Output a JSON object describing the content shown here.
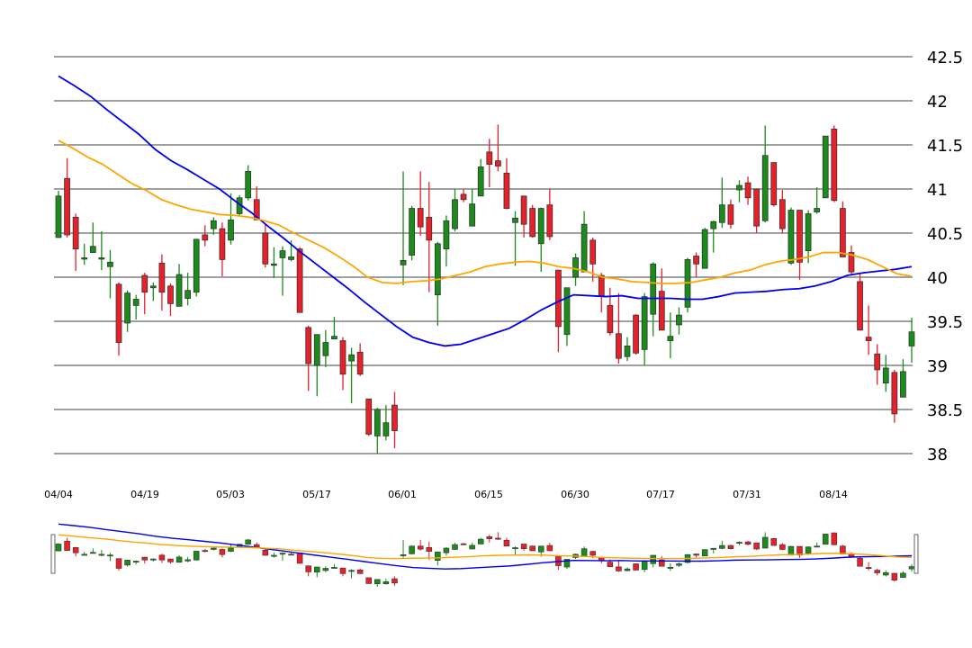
{
  "chart_data": {
    "type": "candlestick",
    "title": "",
    "xlabel": "",
    "ylabel": "",
    "ylim": [
      38,
      42.5
    ],
    "y_ticks": [
      "38",
      "38.5",
      "39",
      "39.5",
      "40",
      "40.5",
      "41",
      "41.5",
      "42",
      "42.5"
    ],
    "x_tick_labels": [
      "04/04",
      "04/19",
      "05/03",
      "05/17",
      "06/01",
      "06/15",
      "06/30",
      "07/17",
      "07/31",
      "08/14"
    ],
    "grid": "horizontal",
    "colors": {
      "up": "#1a8c1a",
      "down": "#e8202a",
      "ma_short": "#0000ee",
      "ma_long": "#ffa500",
      "grid": "#808080"
    },
    "candles": [
      [
        40.45,
        40.92,
        40.98,
        40.45
      ],
      [
        41.12,
        40.48,
        41.35,
        40.45
      ],
      [
        40.68,
        40.32,
        40.72,
        40.07
      ],
      [
        40.22,
        40.22,
        40.38,
        40.14
      ],
      [
        40.28,
        40.35,
        40.62,
        40.28
      ],
      [
        40.22,
        40.22,
        40.52,
        40.08
      ],
      [
        40.12,
        40.17,
        40.31,
        39.76
      ],
      [
        39.92,
        39.26,
        39.94,
        39.11
      ],
      [
        39.48,
        39.82,
        39.85,
        39.38
      ],
      [
        39.68,
        39.75,
        39.8,
        39.52
      ],
      [
        40.02,
        39.83,
        40.05,
        39.58
      ],
      [
        39.88,
        39.9,
        39.94,
        39.73
      ],
      [
        40.16,
        39.83,
        40.26,
        39.62
      ],
      [
        39.9,
        39.7,
        39.93,
        39.56
      ],
      [
        39.67,
        40.03,
        40.15,
        39.67
      ],
      [
        39.76,
        39.85,
        40.05,
        39.68
      ],
      [
        39.83,
        40.43,
        40.43,
        39.78
      ],
      [
        40.48,
        40.42,
        40.59,
        40.35
      ],
      [
        40.55,
        40.64,
        40.68,
        40.48
      ],
      [
        40.55,
        40.2,
        40.62,
        40.01
      ],
      [
        40.42,
        40.65,
        40.95,
        40.37
      ],
      [
        40.72,
        40.9,
        40.93,
        40.7
      ],
      [
        40.9,
        41.2,
        41.27,
        40.87
      ],
      [
        40.88,
        40.65,
        41.03,
        40.65
      ],
      [
        40.5,
        40.15,
        40.6,
        40.11
      ],
      [
        40.15,
        40.15,
        40.34,
        39.99
      ],
      [
        40.22,
        40.3,
        40.35,
        39.79
      ],
      [
        40.2,
        40.23,
        40.42,
        40.18
      ],
      [
        40.32,
        39.6,
        40.34,
        39.6
      ],
      [
        39.43,
        39.02,
        39.45,
        38.71
      ],
      [
        39.0,
        39.35,
        39.35,
        38.65
      ],
      [
        39.11,
        39.26,
        39.4,
        38.98
      ],
      [
        39.3,
        39.33,
        39.55,
        39.3
      ],
      [
        39.28,
        38.9,
        39.32,
        38.72
      ],
      [
        39.05,
        39.12,
        39.2,
        38.57
      ],
      [
        39.15,
        38.9,
        39.25,
        38.88
      ],
      [
        38.62,
        38.22,
        38.62,
        38.2
      ],
      [
        38.2,
        38.5,
        38.52,
        38.0
      ],
      [
        38.2,
        38.35,
        38.55,
        38.15
      ],
      [
        38.55,
        38.26,
        38.7,
        38.06
      ],
      [
        40.14,
        40.19,
        41.2,
        39.91
      ],
      [
        40.25,
        40.78,
        40.81,
        40.19
      ],
      [
        40.78,
        40.57,
        41.2,
        40.47
      ],
      [
        40.68,
        40.42,
        41.08,
        39.83
      ],
      [
        39.8,
        40.38,
        40.4,
        39.45
      ],
      [
        40.32,
        40.64,
        40.7,
        40.12
      ],
      [
        40.55,
        40.88,
        41.0,
        40.52
      ],
      [
        40.94,
        40.88,
        41.0,
        40.85
      ],
      [
        40.58,
        40.83,
        41.0,
        40.58
      ],
      [
        40.92,
        41.25,
        41.34,
        41.0
      ],
      [
        41.42,
        41.28,
        41.57,
        41.02
      ],
      [
        41.32,
        41.26,
        41.73,
        41.2
      ],
      [
        41.18,
        40.78,
        41.35,
        40.77
      ],
      [
        40.62,
        40.67,
        40.75,
        40.13
      ],
      [
        40.92,
        40.6,
        40.92,
        40.45
      ],
      [
        40.78,
        40.46,
        40.82,
        40.45
      ],
      [
        40.38,
        40.78,
        40.79,
        40.06
      ],
      [
        40.82,
        40.46,
        41.0,
        40.42
      ],
      [
        40.08,
        39.44,
        40.08,
        39.15
      ],
      [
        39.35,
        39.88,
        39.88,
        39.22
      ],
      [
        40.0,
        40.22,
        40.27,
        39.9
      ],
      [
        40.06,
        40.6,
        40.75,
        40.06
      ],
      [
        40.42,
        40.15,
        40.45,
        39.95
      ],
      [
        40.02,
        39.79,
        40.05,
        39.6
      ],
      [
        39.68,
        39.37,
        39.88,
        39.34
      ],
      [
        39.36,
        39.08,
        39.82,
        39.02
      ],
      [
        39.1,
        39.22,
        39.32,
        39.05
      ],
      [
        39.57,
        39.14,
        39.58,
        39.12
      ],
      [
        39.18,
        39.78,
        39.82,
        39.0
      ],
      [
        39.58,
        40.15,
        40.17,
        39.33
      ],
      [
        39.84,
        39.4,
        40.1,
        39.4
      ],
      [
        39.28,
        39.33,
        39.6,
        39.08
      ],
      [
        39.46,
        39.57,
        39.66,
        39.35
      ],
      [
        39.66,
        40.2,
        40.22,
        39.6
      ],
      [
        40.24,
        40.15,
        40.28,
        40.0
      ],
      [
        40.1,
        40.54,
        40.56,
        40.1
      ],
      [
        40.55,
        40.63,
        40.64,
        40.28
      ],
      [
        40.62,
        40.82,
        41.13,
        40.56
      ],
      [
        40.82,
        40.6,
        40.88,
        40.55
      ],
      [
        40.99,
        41.04,
        41.1,
        40.85
      ],
      [
        41.07,
        40.9,
        41.14,
        40.82
      ],
      [
        41.0,
        40.58,
        41.0,
        40.5
      ],
      [
        40.64,
        41.38,
        41.72,
        40.62
      ],
      [
        41.3,
        40.82,
        41.3,
        40.8
      ],
      [
        40.88,
        40.55,
        40.99,
        40.5
      ],
      [
        40.16,
        40.76,
        40.79,
        40.14
      ],
      [
        40.76,
        40.17,
        40.76,
        39.97
      ],
      [
        40.3,
        40.72,
        40.76,
        40.16
      ],
      [
        40.74,
        40.78,
        41.02,
        40.72
      ],
      [
        40.9,
        41.6,
        41.6,
        40.9
      ],
      [
        41.68,
        40.87,
        41.72,
        40.85
      ],
      [
        40.78,
        40.23,
        40.86,
        40.23
      ],
      [
        40.28,
        40.06,
        40.36,
        40.03
      ],
      [
        39.95,
        39.4,
        40.05,
        39.4
      ],
      [
        39.32,
        39.28,
        39.68,
        39.12
      ],
      [
        39.13,
        38.95,
        39.24,
        38.78
      ],
      [
        38.8,
        38.97,
        39.12,
        38.7
      ],
      [
        38.92,
        38.45,
        38.95,
        38.35
      ],
      [
        38.64,
        38.93,
        39.07,
        38.64
      ],
      [
        39.22,
        39.38,
        39.54,
        39.03
      ]
    ],
    "series": [
      {
        "values": [
          42.28,
          42.17,
          42.05,
          41.9,
          41.76,
          41.62,
          41.45,
          41.32,
          41.22,
          41.11,
          41.0,
          40.86,
          40.73,
          40.58,
          40.44,
          40.29,
          40.15,
          40.01,
          39.87,
          39.72,
          39.58,
          39.44,
          39.32,
          39.26,
          39.22,
          39.24,
          39.3,
          39.36,
          39.42,
          39.52,
          39.63,
          39.72,
          39.8,
          39.79,
          39.78,
          39.79,
          39.76,
          39.76,
          39.76,
          39.75,
          39.75,
          39.78,
          39.82,
          39.83,
          39.84,
          39.86,
          39.87,
          39.9,
          39.95,
          40.02,
          40.05,
          40.07,
          40.09,
          40.12
        ]
      },
      {
        "values": [
          41.55,
          41.46,
          41.36,
          41.28,
          41.17,
          41.06,
          40.98,
          40.88,
          40.82,
          40.77,
          40.74,
          40.71,
          40.7,
          40.68,
          40.64,
          40.59,
          40.5,
          40.42,
          40.34,
          40.24,
          40.13,
          40.0,
          39.94,
          39.93,
          39.95,
          39.96,
          39.98,
          40.02,
          40.06,
          40.12,
          40.15,
          40.17,
          40.18,
          40.16,
          40.12,
          40.1,
          40.06,
          40.0,
          39.98,
          39.95,
          39.94,
          39.93,
          39.93,
          39.94,
          39.97,
          40.0,
          40.05,
          40.08,
          40.14,
          40.18,
          40.2,
          40.23,
          40.28,
          40.28,
          40.25,
          40.2,
          40.12,
          40.04,
          40.01
        ]
      }
    ]
  },
  "axis_labels": {
    "y": [
      "38",
      "38.5",
      "39",
      "39.5",
      "40",
      "40.5",
      "41",
      "41.5",
      "42",
      "42.5"
    ],
    "x": [
      "04/04",
      "04/19",
      "05/03",
      "05/17",
      "06/01",
      "06/15",
      "06/30",
      "07/17",
      "07/31",
      "08/14"
    ]
  },
  "navigator": {
    "handles": [
      "left-handle",
      "right-handle"
    ]
  }
}
